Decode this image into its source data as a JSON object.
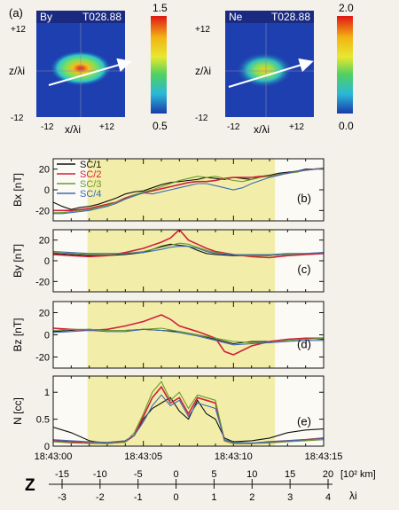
{
  "panel_a_label": "(a)",
  "maps": [
    {
      "var": "By",
      "time": "T028.88",
      "cb_max": "1.5",
      "cb_min": "0.5",
      "ytop": "+12",
      "ybot": "-12",
      "xleft": "-12",
      "xright": "+12",
      "xlabel": "x/λi",
      "ylabel": "z/λi"
    },
    {
      "var": "Ne",
      "time": "T028.88",
      "cb_max": "2.0",
      "cb_min": "0.0",
      "ytop": "+12",
      "ybot": "-12",
      "xleft": "-12",
      "xright": "+12",
      "xlabel": "x/λi",
      "ylabel": "z/λi"
    }
  ],
  "legend": [
    {
      "name": "SC/1",
      "color": "#111111"
    },
    {
      "name": "SC/2",
      "color": "#d0203a"
    },
    {
      "name": "SC/3",
      "color": "#6a9a2a"
    },
    {
      "name": "SC/4",
      "color": "#3a6ab8"
    }
  ],
  "time_ticks": [
    "18:43:00",
    "18:43:05",
    "18:43:10",
    "18:43:15"
  ],
  "z_axis": {
    "label": "Z",
    "km_ticks": [
      "-15",
      "-10",
      "-5",
      "0",
      "5",
      "10",
      "15",
      "20"
    ],
    "km_unit": "[10² km]",
    "li_ticks": [
      "-3",
      "-2",
      "-1",
      "0",
      "1",
      "2",
      "3",
      "4"
    ],
    "li_unit": "λi"
  },
  "chart_data": [
    {
      "type": "line",
      "tag": "(b)",
      "ylabel": "Bx [nT]",
      "ylim": [
        -30,
        30
      ],
      "yticks": [
        "20",
        "0",
        "-20"
      ],
      "xlim": [
        0,
        15
      ],
      "highlight": [
        1.9,
        12.3
      ],
      "series": [
        {
          "name": "SC/1",
          "x": [
            0,
            0.5,
            1,
            1.5,
            2,
            2.5,
            3,
            3.5,
            4,
            4.5,
            5,
            5.5,
            6,
            6.5,
            7,
            7.5,
            8,
            8.5,
            9,
            9.5,
            10,
            10.5,
            11,
            11.5,
            12,
            12.5,
            13,
            13.5,
            14,
            14.5,
            15
          ],
          "y": [
            -12,
            -16,
            -19,
            -17,
            -16,
            -14,
            -11,
            -8,
            -4,
            -2,
            -1,
            2,
            5,
            7,
            8,
            9,
            10,
            12,
            11,
            10,
            12,
            11,
            10,
            13,
            14,
            16,
            17,
            18,
            20,
            20,
            21
          ]
        },
        {
          "name": "SC/2",
          "x": [
            0,
            0.5,
            1,
            1.5,
            2,
            2.5,
            3,
            3.5,
            4,
            4.5,
            5,
            5.5,
            6,
            6.5,
            7,
            7.5,
            8,
            8.5,
            9,
            9.5,
            10,
            10.5,
            11,
            11.5,
            12,
            12.5,
            13,
            13.5,
            14,
            14.5,
            15
          ],
          "y": [
            -20,
            -20,
            -20,
            -19,
            -18,
            -16,
            -14,
            -12,
            -8,
            -5,
            -3,
            -1,
            1,
            3,
            5,
            7,
            8,
            8,
            9,
            11,
            12,
            12,
            12,
            13,
            13,
            15,
            16,
            18,
            19,
            20,
            21
          ]
        },
        {
          "name": "SC/3",
          "x": [
            0,
            0.5,
            1,
            1.5,
            2,
            2.5,
            3,
            3.5,
            4,
            4.5,
            5,
            5.5,
            6,
            6.5,
            7,
            7.5,
            8,
            8.5,
            9,
            9.5,
            10,
            10.5,
            11,
            11.5,
            12,
            12.5,
            13,
            13.5,
            14,
            14.5,
            15
          ],
          "y": [
            -22,
            -22,
            -21,
            -20,
            -19,
            -17,
            -15,
            -12,
            -9,
            -5,
            -2,
            0,
            3,
            6,
            9,
            11,
            13,
            12,
            13,
            11,
            9,
            8,
            10,
            12,
            13,
            15,
            16,
            17,
            19,
            20,
            21
          ]
        },
        {
          "name": "SC/4",
          "x": [
            0,
            0.5,
            1,
            1.5,
            2,
            2.5,
            3,
            3.5,
            4,
            4.5,
            5,
            5.5,
            6,
            6.5,
            7,
            7.5,
            8,
            8.5,
            9,
            9.5,
            10,
            10.5,
            11,
            11.5,
            12,
            12.5,
            13,
            13.5,
            14,
            14.5,
            15
          ],
          "y": [
            -23,
            -23,
            -22,
            -21,
            -20,
            -18,
            -16,
            -13,
            -9,
            -6,
            -3,
            -4,
            -2,
            0,
            2,
            4,
            6,
            6,
            4,
            2,
            0,
            2,
            6,
            9,
            12,
            14,
            16,
            18,
            19,
            20,
            20
          ]
        }
      ]
    },
    {
      "type": "line",
      "tag": "(c)",
      "ylabel": "By [nT]",
      "ylim": [
        -30,
        30
      ],
      "yticks": [
        "20",
        "0",
        "-20"
      ],
      "xlim": [
        0,
        15
      ],
      "highlight": [
        1.9,
        12.3
      ],
      "series": [
        {
          "name": "SC/1",
          "x": [
            0,
            1,
            2,
            3,
            4,
            5,
            6,
            6.5,
            7,
            7.5,
            8,
            8.5,
            9,
            10,
            11,
            12,
            13,
            14,
            15
          ],
          "y": [
            7,
            6,
            5,
            5,
            6,
            8,
            14,
            16,
            15,
            14,
            10,
            7,
            6,
            5,
            5,
            5,
            6,
            6,
            7
          ]
        },
        {
          "name": "SC/2",
          "x": [
            0,
            1,
            2,
            3,
            4,
            5,
            6,
            6.5,
            7,
            7.5,
            8,
            8.5,
            9,
            10,
            11,
            12,
            13,
            14,
            15
          ],
          "y": [
            6,
            5,
            4,
            5,
            8,
            12,
            18,
            22,
            30,
            20,
            16,
            12,
            9,
            6,
            4,
            3,
            5,
            6,
            7
          ]
        },
        {
          "name": "SC/3",
          "x": [
            0,
            1,
            2,
            3,
            4,
            5,
            6,
            6.5,
            7,
            7.5,
            8,
            8.5,
            9,
            10,
            11,
            12,
            13,
            14,
            15
          ],
          "y": [
            8,
            7,
            6,
            6,
            7,
            9,
            13,
            15,
            17,
            16,
            13,
            10,
            8,
            6,
            5,
            5,
            6,
            7,
            8
          ]
        },
        {
          "name": "SC/4",
          "x": [
            0,
            1,
            2,
            3,
            4,
            5,
            6,
            6.5,
            7,
            7.5,
            8,
            8.5,
            9,
            10,
            11,
            12,
            13,
            14,
            15
          ],
          "y": [
            9,
            8,
            7,
            7,
            7,
            8,
            11,
            13,
            14,
            14,
            12,
            9,
            7,
            6,
            6,
            6,
            7,
            7,
            8
          ]
        }
      ]
    },
    {
      "type": "line",
      "tag": "(d)",
      "ylabel": "Bz [nT]",
      "ylim": [
        -30,
        30
      ],
      "yticks": [
        "20",
        "0",
        "-20"
      ],
      "xlim": [
        0,
        15
      ],
      "highlight": [
        1.9,
        12.3
      ],
      "series": [
        {
          "name": "SC/1",
          "x": [
            0,
            1,
            2,
            3,
            4,
            5,
            6,
            7,
            8,
            9,
            10,
            11,
            12,
            13,
            14,
            15
          ],
          "y": [
            3,
            4,
            5,
            4,
            4,
            5,
            4,
            3,
            0,
            -4,
            -8,
            -6,
            -6,
            -4,
            -3,
            -4
          ]
        },
        {
          "name": "SC/2",
          "x": [
            0,
            1,
            2,
            3,
            4,
            5,
            5.5,
            6,
            6.5,
            7,
            8,
            9,
            9.5,
            10,
            11,
            12,
            13,
            14,
            15
          ],
          "y": [
            6,
            5,
            4,
            5,
            8,
            12,
            15,
            18,
            14,
            8,
            3,
            -3,
            -15,
            -18,
            -10,
            -6,
            -4,
            -3,
            -3
          ]
        },
        {
          "name": "SC/3",
          "x": [
            0,
            1,
            2,
            3,
            4,
            5,
            6,
            7,
            8,
            9,
            10,
            11,
            12,
            13,
            14,
            15
          ],
          "y": [
            4,
            5,
            5,
            4,
            4,
            5,
            6,
            3,
            0,
            -3,
            -6,
            -7,
            -7,
            -5,
            -4,
            -3
          ]
        },
        {
          "name": "SC/4",
          "x": [
            0,
            1,
            2,
            3,
            4,
            5,
            6,
            7,
            8,
            9,
            10,
            11,
            12,
            13,
            14,
            15
          ],
          "y": [
            2,
            3,
            4,
            3,
            3,
            5,
            4,
            2,
            -1,
            -5,
            -9,
            -8,
            -7,
            -6,
            -5,
            -5
          ]
        }
      ]
    },
    {
      "type": "line",
      "tag": "(e)",
      "ylabel": "N [cc]",
      "ylim": [
        0,
        1.3
      ],
      "yticks": [
        "1",
        "0.5",
        "0"
      ],
      "xlim": [
        0,
        15
      ],
      "highlight": [
        1.9,
        12.3
      ],
      "series": [
        {
          "name": "SC/1",
          "x": [
            0,
            1,
            2,
            3,
            4,
            4.5,
            5,
            5.5,
            6,
            6.5,
            7,
            7.5,
            8,
            8.5,
            9,
            9.5,
            10,
            11,
            12,
            13,
            14,
            15
          ],
          "y": [
            0.35,
            0.25,
            0.1,
            0.05,
            0.1,
            0.2,
            0.5,
            0.7,
            0.8,
            0.9,
            0.65,
            0.5,
            0.85,
            0.6,
            0.5,
            0.15,
            0.08,
            0.1,
            0.15,
            0.25,
            0.3,
            0.32
          ]
        },
        {
          "name": "SC/2",
          "x": [
            0,
            1,
            2,
            3,
            4,
            4.5,
            5,
            5.5,
            6,
            6.5,
            7,
            7.5,
            8,
            8.5,
            9,
            9.5,
            10,
            11,
            12,
            13,
            14,
            15
          ],
          "y": [
            0.1,
            0.08,
            0.06,
            0.05,
            0.08,
            0.2,
            0.55,
            0.9,
            1.1,
            0.8,
            0.9,
            0.6,
            0.9,
            0.85,
            0.8,
            0.1,
            0.05,
            0.05,
            0.08,
            0.1,
            0.12,
            0.15
          ]
        },
        {
          "name": "SC/3",
          "x": [
            0,
            1,
            2,
            3,
            4,
            4.5,
            5,
            5.5,
            6,
            6.5,
            7,
            7.5,
            8,
            8.5,
            9,
            9.5,
            10,
            11,
            12,
            13,
            14,
            15
          ],
          "y": [
            0.08,
            0.06,
            0.05,
            0.05,
            0.07,
            0.25,
            0.6,
            1.0,
            1.2,
            0.85,
            1.0,
            0.7,
            0.95,
            0.9,
            0.85,
            0.1,
            0.05,
            0.05,
            0.06,
            0.08,
            0.1,
            0.12
          ]
        },
        {
          "name": "SC/4",
          "x": [
            0,
            1,
            2,
            3,
            4,
            4.5,
            5,
            5.5,
            6,
            6.5,
            7,
            7.5,
            8,
            8.5,
            9,
            9.5,
            10,
            11,
            12,
            13,
            14,
            15
          ],
          "y": [
            0.12,
            0.1,
            0.08,
            0.07,
            0.1,
            0.2,
            0.45,
            0.75,
            0.95,
            0.75,
            0.85,
            0.55,
            0.8,
            0.75,
            0.7,
            0.12,
            0.07,
            0.06,
            0.08,
            0.1,
            0.12,
            0.14
          ]
        }
      ]
    }
  ]
}
